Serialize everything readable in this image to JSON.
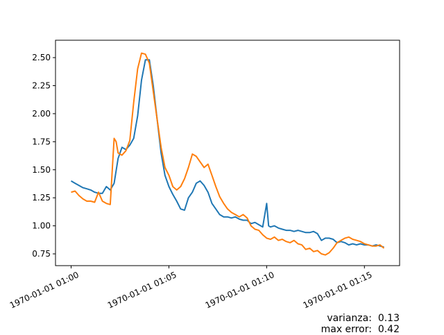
{
  "chart_data": {
    "type": "line",
    "xlabel": "",
    "ylabel": "",
    "title": "",
    "x_unit": "minutes after 1970-01-01 01:00",
    "xlim": [
      -0.8,
      16.8
    ],
    "ylim": [
      0.645,
      2.655
    ],
    "x_ticks": [
      {
        "value": 0,
        "label": "1970-01-01 01:00"
      },
      {
        "value": 5,
        "label": "1970-01-01 01:05"
      },
      {
        "value": 10,
        "label": "1970-01-01 01:10"
      },
      {
        "value": 15,
        "label": "1970-01-01 01:15"
      }
    ],
    "y_ticks": [
      {
        "value": 0.75,
        "label": "0.75"
      },
      {
        "value": 1.0,
        "label": "1.00"
      },
      {
        "value": 1.25,
        "label": "1.25"
      },
      {
        "value": 1.5,
        "label": "1.50"
      },
      {
        "value": 1.75,
        "label": "1.75"
      },
      {
        "value": 2.0,
        "label": "2.00"
      },
      {
        "value": 2.25,
        "label": "2.25"
      },
      {
        "value": 2.5,
        "label": "2.50"
      }
    ],
    "grid": false,
    "series": [
      {
        "color": "#1f77b4",
        "x": [
          0,
          0.2,
          0.4,
          0.6,
          0.8,
          1.0,
          1.2,
          1.4,
          1.6,
          1.8,
          2.0,
          2.2,
          2.4,
          2.6,
          2.8,
          3.0,
          3.2,
          3.4,
          3.6,
          3.8,
          4.0,
          4.2,
          4.4,
          4.6,
          4.8,
          5.0,
          5.2,
          5.4,
          5.6,
          5.8,
          6.0,
          6.2,
          6.4,
          6.6,
          6.8,
          7.0,
          7.2,
          7.4,
          7.6,
          7.8,
          8.0,
          8.2,
          8.4,
          8.6,
          8.8,
          9.0,
          9.2,
          9.4,
          9.6,
          9.8,
          10.0,
          10.1,
          10.2,
          10.4,
          10.6,
          10.8,
          11.0,
          11.2,
          11.4,
          11.6,
          11.8,
          12.0,
          12.2,
          12.4,
          12.6,
          12.8,
          13.0,
          13.2,
          13.4,
          13.6,
          13.8,
          14.0,
          14.2,
          14.4,
          14.6,
          14.8,
          15.0,
          15.2,
          15.4,
          15.6,
          15.8,
          16.0
        ],
        "values": [
          1.4,
          1.38,
          1.36,
          1.34,
          1.33,
          1.32,
          1.3,
          1.29,
          1.29,
          1.35,
          1.32,
          1.38,
          1.6,
          1.7,
          1.68,
          1.72,
          1.78,
          1.98,
          2.3,
          2.48,
          2.48,
          2.25,
          1.95,
          1.65,
          1.45,
          1.35,
          1.28,
          1.22,
          1.15,
          1.14,
          1.25,
          1.3,
          1.38,
          1.4,
          1.36,
          1.3,
          1.2,
          1.15,
          1.1,
          1.08,
          1.08,
          1.07,
          1.08,
          1.06,
          1.05,
          1.05,
          1.02,
          1.03,
          1.01,
          0.99,
          1.2,
          1.0,
          0.99,
          1.0,
          0.98,
          0.97,
          0.96,
          0.96,
          0.95,
          0.96,
          0.95,
          0.94,
          0.94,
          0.95,
          0.93,
          0.87,
          0.89,
          0.89,
          0.88,
          0.85,
          0.86,
          0.85,
          0.83,
          0.84,
          0.83,
          0.84,
          0.83,
          0.83,
          0.82,
          0.83,
          0.82,
          0.81
        ]
      },
      {
        "color": "#ff7f0e",
        "x": [
          0,
          0.2,
          0.4,
          0.6,
          0.8,
          1.0,
          1.2,
          1.4,
          1.6,
          1.8,
          2.0,
          2.2,
          2.3,
          2.4,
          2.6,
          2.8,
          3.0,
          3.2,
          3.4,
          3.6,
          3.8,
          4.0,
          4.2,
          4.4,
          4.6,
          4.8,
          5.0,
          5.2,
          5.4,
          5.6,
          5.8,
          6.0,
          6.2,
          6.4,
          6.6,
          6.8,
          7.0,
          7.2,
          7.4,
          7.6,
          7.8,
          8.0,
          8.2,
          8.4,
          8.6,
          8.8,
          9.0,
          9.2,
          9.4,
          9.6,
          9.8,
          10.0,
          10.2,
          10.4,
          10.6,
          10.8,
          11.0,
          11.2,
          11.4,
          11.6,
          11.8,
          12.0,
          12.2,
          12.4,
          12.6,
          12.8,
          13.0,
          13.2,
          13.4,
          13.6,
          13.8,
          14.0,
          14.2,
          14.4,
          14.6,
          14.8,
          15.0,
          15.2,
          15.4,
          15.6,
          15.8,
          16.0
        ],
        "values": [
          1.3,
          1.31,
          1.27,
          1.24,
          1.22,
          1.22,
          1.21,
          1.3,
          1.22,
          1.2,
          1.19,
          1.78,
          1.75,
          1.65,
          1.63,
          1.67,
          1.76,
          2.1,
          2.4,
          2.54,
          2.53,
          2.45,
          2.2,
          1.95,
          1.7,
          1.52,
          1.45,
          1.35,
          1.32,
          1.35,
          1.42,
          1.52,
          1.64,
          1.62,
          1.57,
          1.52,
          1.55,
          1.45,
          1.35,
          1.26,
          1.2,
          1.15,
          1.12,
          1.1,
          1.08,
          1.1,
          1.07,
          1.0,
          0.97,
          0.96,
          0.92,
          0.89,
          0.88,
          0.9,
          0.87,
          0.88,
          0.86,
          0.85,
          0.87,
          0.84,
          0.83,
          0.79,
          0.8,
          0.77,
          0.78,
          0.75,
          0.74,
          0.76,
          0.8,
          0.85,
          0.87,
          0.89,
          0.9,
          0.88,
          0.87,
          0.86,
          0.84,
          0.83,
          0.82,
          0.82,
          0.83,
          0.8
        ]
      }
    ]
  },
  "stats": {
    "varianza": "varianza:  0.13",
    "max_error": "max error:  0.42"
  }
}
